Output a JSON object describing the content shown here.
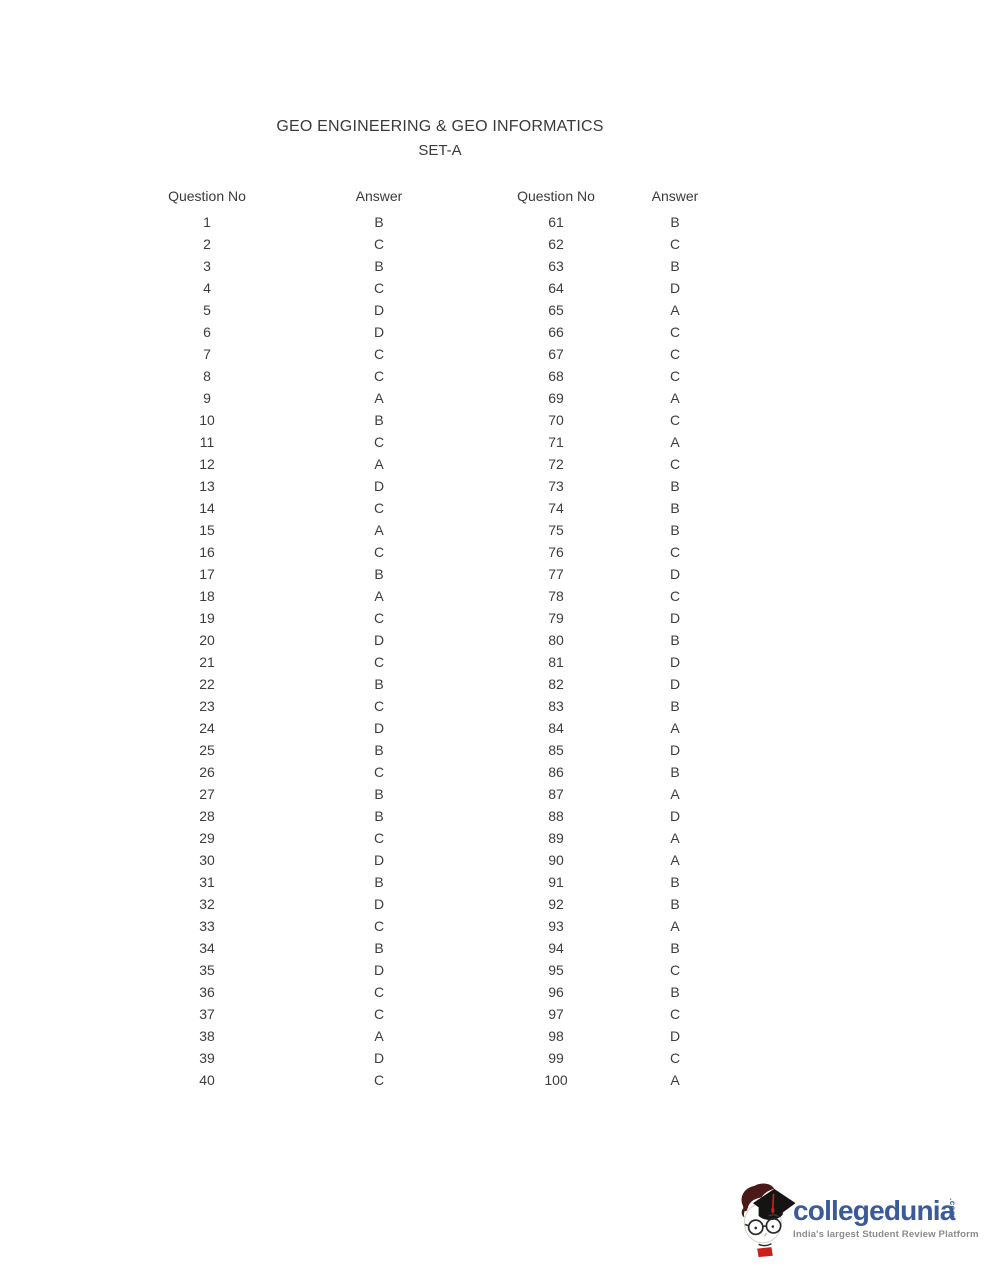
{
  "doc": {
    "title": "GEO ENGINEERING & GEO INFORMATICS",
    "set_label": "SET-A"
  },
  "table": {
    "headers": [
      "Question No",
      "Answer",
      "Question No",
      "Answer"
    ],
    "rows": [
      [
        "1",
        "B",
        "61",
        "B"
      ],
      [
        "2",
        "C",
        "62",
        "C"
      ],
      [
        "3",
        "B",
        "63",
        "B"
      ],
      [
        "4",
        "C",
        "64",
        "D"
      ],
      [
        "5",
        "D",
        "65",
        "A"
      ],
      [
        "6",
        "D",
        "66",
        "C"
      ],
      [
        "7",
        "C",
        "67",
        "C"
      ],
      [
        "8",
        "C",
        "68",
        "C"
      ],
      [
        "9",
        "A",
        "69",
        "A"
      ],
      [
        "10",
        "B",
        "70",
        "C"
      ],
      [
        "11",
        "C",
        "71",
        "A"
      ],
      [
        "12",
        "A",
        "72",
        "C"
      ],
      [
        "13",
        "D",
        "73",
        "B"
      ],
      [
        "14",
        "C",
        "74",
        "B"
      ],
      [
        "15",
        "A",
        "75",
        "B"
      ],
      [
        "16",
        "C",
        "76",
        "C"
      ],
      [
        "17",
        "B",
        "77",
        "D"
      ],
      [
        "18",
        "A",
        "78",
        "C"
      ],
      [
        "19",
        "C",
        "79",
        "D"
      ],
      [
        "20",
        "D",
        "80",
        "B"
      ],
      [
        "21",
        "C",
        "81",
        "D"
      ],
      [
        "22",
        "B",
        "82",
        "D"
      ],
      [
        "23",
        "C",
        "83",
        "B"
      ],
      [
        "24",
        "D",
        "84",
        "A"
      ],
      [
        "25",
        "B",
        "85",
        "D"
      ],
      [
        "26",
        "C",
        "86",
        "B"
      ],
      [
        "27",
        "B",
        "87",
        "A"
      ],
      [
        "28",
        "B",
        "88",
        "D"
      ],
      [
        "29",
        "C",
        "89",
        "A"
      ],
      [
        "30",
        "D",
        "90",
        "A"
      ],
      [
        "31",
        "B",
        "91",
        "B"
      ],
      [
        "32",
        "D",
        "92",
        "B"
      ],
      [
        "33",
        "C",
        "93",
        "A"
      ],
      [
        "34",
        "B",
        "94",
        "B"
      ],
      [
        "35",
        "D",
        "95",
        "C"
      ],
      [
        "36",
        "C",
        "96",
        "B"
      ],
      [
        "37",
        "C",
        "97",
        "C"
      ],
      [
        "38",
        "A",
        "98",
        "D"
      ],
      [
        "39",
        "D",
        "99",
        "C"
      ],
      [
        "40",
        "C",
        "100",
        "A"
      ]
    ]
  },
  "logo": {
    "brand": "collegedunia",
    "tld": ".com",
    "tagline": "India's largest Student Review Platform",
    "brand_color": "#3a5a98",
    "tagline_color": "#8b8b8b",
    "hair_color": "#4a1a18",
    "cap_color": "#161412",
    "tassel_color": "#c9201d"
  }
}
